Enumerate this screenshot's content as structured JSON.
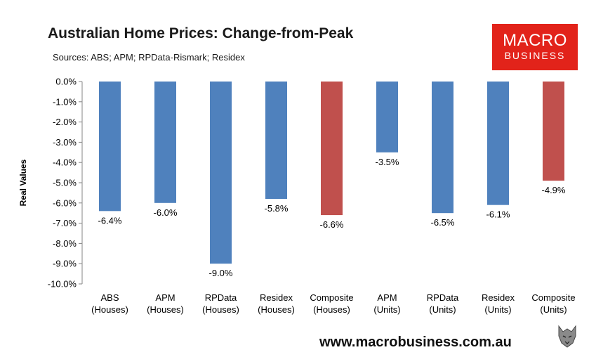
{
  "header": {
    "title": "Australian Home Prices: Change-from-Peak",
    "subtitle": "Sources: ABS;  APM; RPData-Rismark; Residex"
  },
  "logo": {
    "line1": "MACRO",
    "line2": "BUSINESS"
  },
  "footer": {
    "url": "www.macrobusiness.com.au"
  },
  "colors": {
    "houses_bar": "#4f81bd",
    "composite_bar": "#c0504d",
    "logo_bg": "#e2231a"
  },
  "chart_data": {
    "type": "bar",
    "title": "Australian Home Prices: Change-from-Peak",
    "subtitle": "Sources: ABS;  APM; RPData-Rismark; Residex",
    "ylabel": "Real Values",
    "xlabel": "",
    "ylim": [
      -10,
      0
    ],
    "ytick_step": 1,
    "ytick_format": "percent_1dp",
    "grid": false,
    "legend": "none",
    "categories": [
      [
        "ABS",
        "(Houses)"
      ],
      [
        "APM",
        "(Houses)"
      ],
      [
        "RPData",
        "(Houses)"
      ],
      [
        "Residex",
        "(Houses)"
      ],
      [
        "Composite",
        "(Houses)"
      ],
      [
        "APM",
        "(Units)"
      ],
      [
        "RPData",
        "(Units)"
      ],
      [
        "Residex",
        "(Units)"
      ],
      [
        "Composite",
        "(Units)"
      ]
    ],
    "values": [
      -6.4,
      -6.0,
      -9.0,
      -5.8,
      -6.6,
      -3.5,
      -6.5,
      -6.1,
      -4.9
    ],
    "value_labels": [
      "-6.4%",
      "-6.0%",
      "-9.0%",
      "-5.8%",
      "-6.6%",
      "-3.5%",
      "-6.5%",
      "-6.1%",
      "-4.9%"
    ],
    "bar_colors": [
      "#4f81bd",
      "#4f81bd",
      "#4f81bd",
      "#4f81bd",
      "#c0504d",
      "#4f81bd",
      "#4f81bd",
      "#4f81bd",
      "#c0504d"
    ]
  }
}
